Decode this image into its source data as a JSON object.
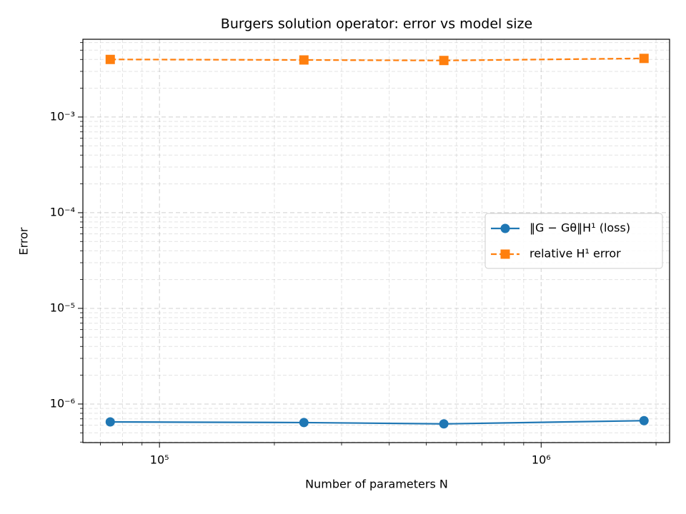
{
  "chart_data": {
    "type": "line",
    "title": "Burgers solution operator: error vs model size",
    "x_label": "Number of parameters N",
    "y_label": "Error",
    "x": [
      74300,
      239000,
      556000,
      1860000
    ],
    "series": [
      {
        "name": "‖G − Gθ‖H¹ (loss)",
        "color": "#1f77b4",
        "marker": "circle",
        "dash": "solid",
        "values": [
          6.5e-07,
          6.4e-07,
          6.2e-07,
          6.7e-07
        ]
      },
      {
        "name": "relative H¹ error",
        "color": "#ff7f0e",
        "marker": "square",
        "dash": "dashed",
        "values": [
          0.004,
          0.00395,
          0.0039,
          0.0041
        ]
      }
    ],
    "x_log": true,
    "y_log": true,
    "xlim": [
      63000,
      2170000
    ],
    "ylim": [
      3.95e-07,
      0.0065
    ],
    "xticks": [
      {
        "value": 100000,
        "label": "10⁵"
      },
      {
        "value": 1000000,
        "label": "10⁶"
      }
    ],
    "yticks": [
      {
        "value": 1e-06,
        "label": "10⁻⁶"
      },
      {
        "value": 1e-05,
        "label": "10⁻⁵"
      },
      {
        "value": 0.0001,
        "label": "10⁻⁴"
      },
      {
        "value": 0.001,
        "label": "10⁻³"
      }
    ],
    "grid": true,
    "minor_grid": true,
    "legend": "center right"
  }
}
